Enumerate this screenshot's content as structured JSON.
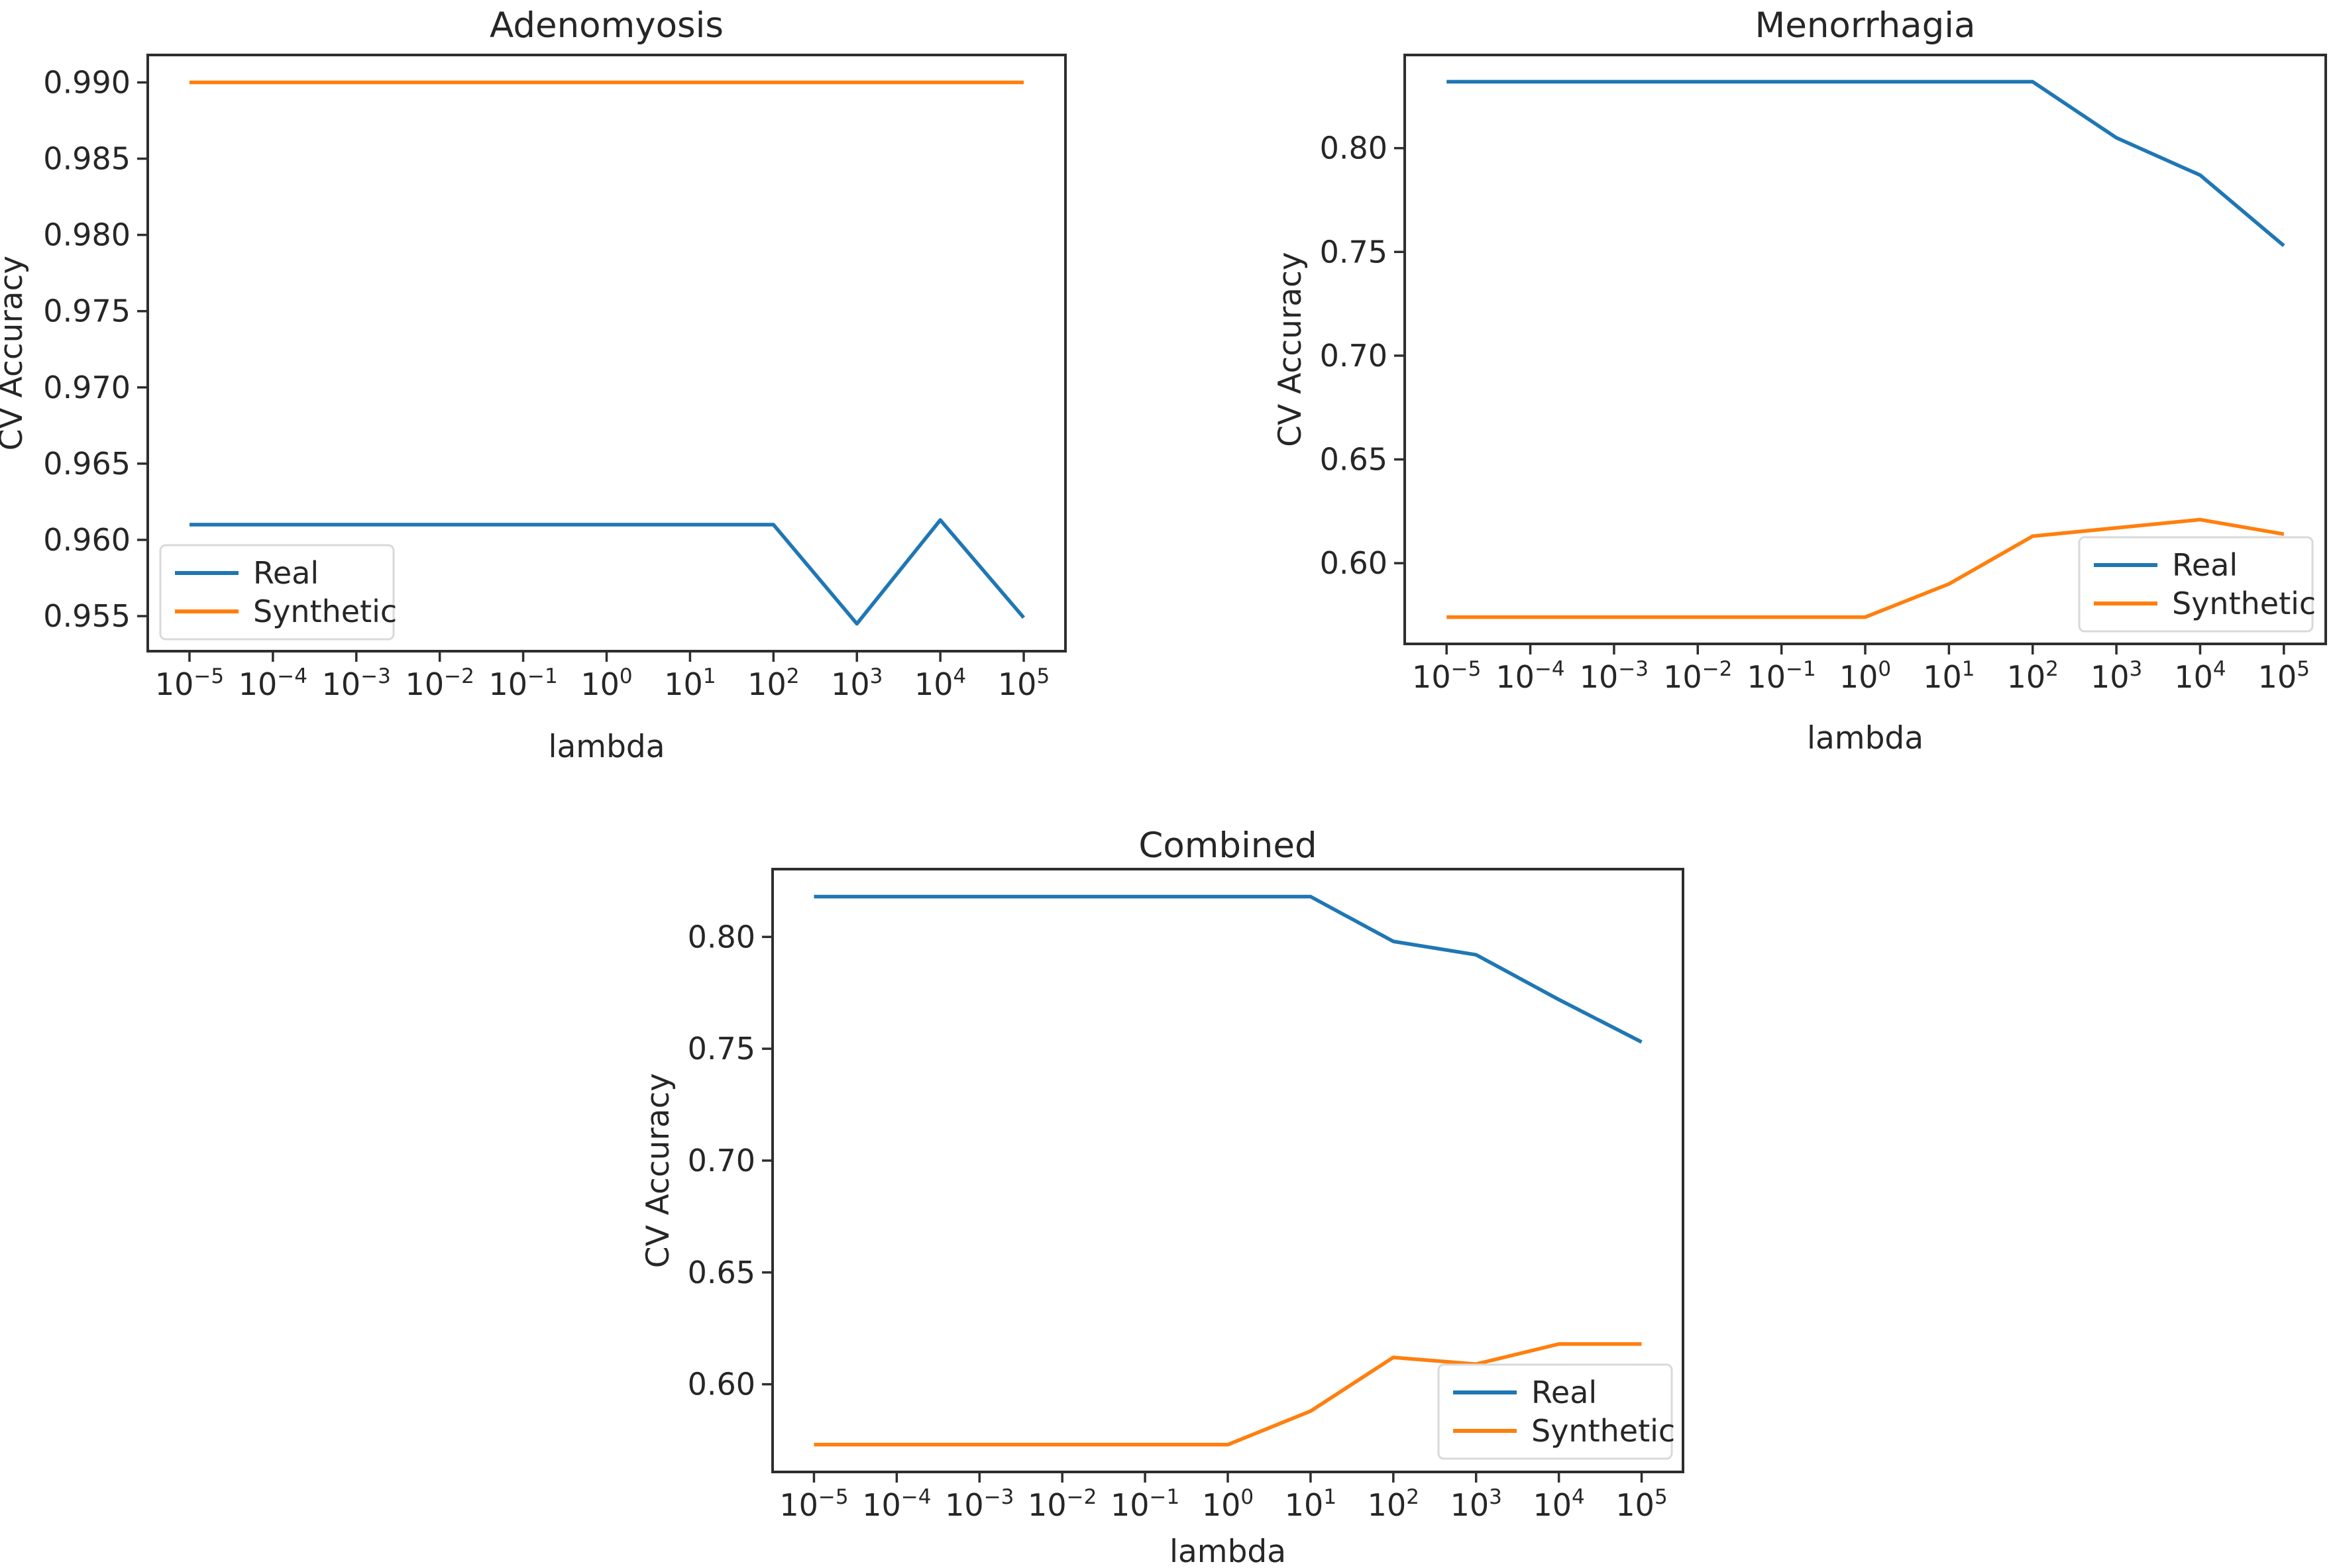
{
  "figure": {
    "background_color": "#ffffff",
    "text_color": "#262626",
    "spine_color": "#2e2e2e",
    "legend_border_color": "#d9d9d9",
    "legend_background_color": "#ffffff"
  },
  "chart_data": [
    {
      "type": "line",
      "title": "Adenomyosis",
      "xlabel": "lambda",
      "ylabel": "CV Accuracy",
      "x_scale": "log",
      "x_tick_exponents": [
        "−5",
        "−4",
        "−3",
        "−2",
        "−1",
        "0",
        "1",
        "2",
        "3",
        "4",
        "5"
      ],
      "x_range_exponents": [
        -5,
        5
      ],
      "ylim": [
        0.9527,
        0.9918
      ],
      "y_ticks": [
        {
          "value": 0.955,
          "label": "0.955"
        },
        {
          "value": 0.96,
          "label": "0.960"
        },
        {
          "value": 0.965,
          "label": "0.965"
        },
        {
          "value": 0.97,
          "label": "0.970"
        },
        {
          "value": 0.975,
          "label": "0.975"
        },
        {
          "value": 0.98,
          "label": "0.980"
        },
        {
          "value": 0.985,
          "label": "0.985"
        },
        {
          "value": 0.99,
          "label": "0.990"
        }
      ],
      "series": [
        {
          "name": "Real",
          "color": "#1f77b4",
          "values": [
            0.961,
            0.961,
            0.961,
            0.961,
            0.961,
            0.961,
            0.961,
            0.961,
            0.9545,
            0.9613,
            0.9549
          ]
        },
        {
          "name": "Synthetic",
          "color": "#ff7f0e",
          "values": [
            0.99,
            0.99,
            0.99,
            0.99,
            0.99,
            0.99,
            0.99,
            0.99,
            0.99,
            0.99,
            0.99
          ]
        }
      ],
      "legend": {
        "loc": "lower left",
        "labels": [
          "Real",
          "Synthetic"
        ]
      },
      "grid": false
    },
    {
      "type": "line",
      "title": "Menorrhagia",
      "xlabel": "lambda",
      "ylabel": "CV Accuracy",
      "x_scale": "log",
      "x_tick_exponents": [
        "−5",
        "−4",
        "−3",
        "−2",
        "−1",
        "0",
        "1",
        "2",
        "3",
        "4",
        "5"
      ],
      "x_range_exponents": [
        -5,
        5
      ],
      "ylim": [
        0.5611,
        0.8449
      ],
      "y_ticks": [
        {
          "value": 0.6,
          "label": "0.60"
        },
        {
          "value": 0.65,
          "label": "0.65"
        },
        {
          "value": 0.7,
          "label": "0.70"
        },
        {
          "value": 0.75,
          "label": "0.75"
        },
        {
          "value": 0.8,
          "label": "0.80"
        }
      ],
      "series": [
        {
          "name": "Real",
          "color": "#1f77b4",
          "values": [
            0.832,
            0.832,
            0.832,
            0.832,
            0.832,
            0.832,
            0.832,
            0.832,
            0.805,
            0.787,
            0.753
          ]
        },
        {
          "name": "Synthetic",
          "color": "#ff7f0e",
          "values": [
            0.574,
            0.574,
            0.574,
            0.574,
            0.574,
            0.574,
            0.59,
            0.613,
            0.617,
            0.621,
            0.614
          ]
        }
      ],
      "legend": {
        "loc": "lower right",
        "labels": [
          "Real",
          "Synthetic"
        ]
      },
      "grid": false
    },
    {
      "type": "line",
      "title": "Combined",
      "xlabel": "lambda",
      "ylabel": "CV Accuracy",
      "x_scale": "log",
      "x_tick_exponents": [
        "−5",
        "−4",
        "−3",
        "−2",
        "−1",
        "0",
        "1",
        "2",
        "3",
        "4",
        "5"
      ],
      "x_range_exponents": [
        -5,
        5
      ],
      "ylim": [
        0.5608,
        0.8303
      ],
      "y_ticks": [
        {
          "value": 0.6,
          "label": "0.60"
        },
        {
          "value": 0.65,
          "label": "0.65"
        },
        {
          "value": 0.7,
          "label": "0.70"
        },
        {
          "value": 0.75,
          "label": "0.75"
        },
        {
          "value": 0.8,
          "label": "0.80"
        }
      ],
      "series": [
        {
          "name": "Real",
          "color": "#1f77b4",
          "values": [
            0.818,
            0.818,
            0.818,
            0.818,
            0.818,
            0.818,
            0.818,
            0.798,
            0.792,
            0.772,
            0.753
          ]
        },
        {
          "name": "Synthetic",
          "color": "#ff7f0e",
          "values": [
            0.573,
            0.573,
            0.573,
            0.573,
            0.573,
            0.573,
            0.588,
            0.612,
            0.609,
            0.618,
            0.618
          ]
        }
      ],
      "legend": {
        "loc": "lower right",
        "labels": [
          "Real",
          "Synthetic"
        ]
      },
      "grid": false
    }
  ]
}
